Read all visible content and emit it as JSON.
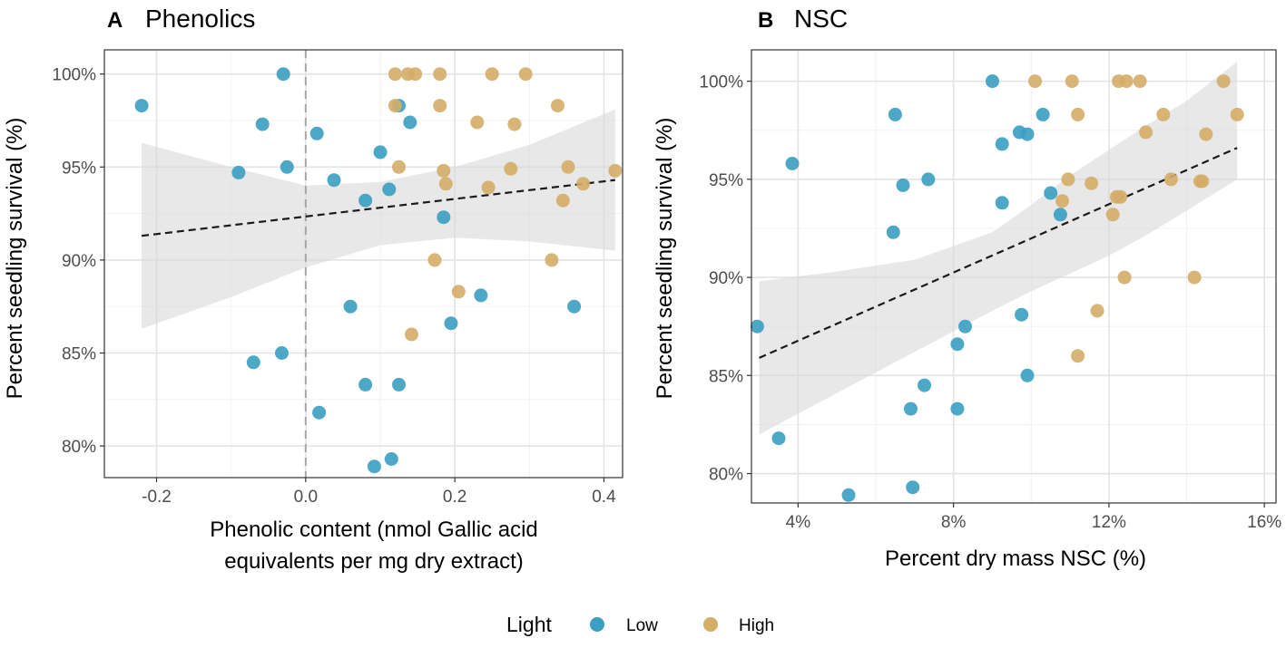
{
  "colors": {
    "low": "#3a9fc1",
    "high": "#d4ad67",
    "band": "#d9d9d9",
    "trend": "#1a1a1a"
  },
  "legend": {
    "title": "Light",
    "items": [
      {
        "key": "low",
        "label": "Low"
      },
      {
        "key": "high",
        "label": "High"
      }
    ]
  },
  "chart_data": [
    {
      "type": "scatter",
      "panel_letter": "A",
      "title": "Phenolics",
      "xlabel_lines": [
        "Phenolic content (nmol Gallic acid",
        "equivalents per mg dry extract)"
      ],
      "ylabel": "Percent seedling survival (%)",
      "xlim": [
        -0.27,
        0.425
      ],
      "ylim": [
        78.3,
        101.3
      ],
      "x_ticks": [
        -0.2,
        0.0,
        0.2,
        0.4
      ],
      "x_tick_labels": [
        "-0.2",
        "0.0",
        "0.2",
        "0.4"
      ],
      "y_ticks": [
        80,
        85,
        90,
        95,
        100
      ],
      "y_tick_labels": [
        "80%",
        "85%",
        "90%",
        "95%",
        "100%"
      ],
      "vline_x": 0.0,
      "trend": {
        "x": [
          -0.22,
          0.415
        ],
        "y": [
          91.3,
          94.3
        ]
      },
      "band": {
        "x": [
          -0.22,
          -0.1,
          0.0,
          0.1,
          0.2,
          0.3,
          0.415
        ],
        "upper": [
          96.3,
          95.0,
          94.0,
          94.2,
          95.0,
          96.2,
          98.1
        ],
        "lower": [
          86.3,
          88.0,
          89.6,
          90.8,
          91.2,
          91.0,
          90.5
        ]
      },
      "series": [
        {
          "name": "Low",
          "x": [
            -0.22,
            -0.03,
            -0.058,
            -0.09,
            -0.025,
            0.015,
            0.125,
            0.14,
            0.1,
            0.038,
            0.112,
            0.08,
            0.185,
            0.06,
            0.235,
            0.195,
            0.36,
            -0.032,
            -0.07,
            0.08,
            0.125,
            0.018,
            0.115,
            0.092
          ],
          "y": [
            98.3,
            100,
            97.3,
            94.7,
            95.0,
            96.8,
            98.3,
            97.4,
            95.8,
            94.3,
            93.8,
            93.2,
            92.3,
            87.5,
            88.1,
            86.6,
            87.5,
            85.0,
            84.5,
            83.3,
            83.3,
            81.8,
            79.3,
            78.9
          ]
        },
        {
          "name": "High",
          "x": [
            0.12,
            0.137,
            0.147,
            0.18,
            0.25,
            0.295,
            0.12,
            0.18,
            0.338,
            0.23,
            0.28,
            0.125,
            0.185,
            0.188,
            0.275,
            0.352,
            0.245,
            0.345,
            0.372,
            0.415,
            0.173,
            0.205,
            0.33,
            0.142
          ],
          "y": [
            100,
            100,
            100,
            100,
            100,
            100,
            98.3,
            98.3,
            98.3,
            97.4,
            97.3,
            95.0,
            94.8,
            94.1,
            94.9,
            95.0,
            93.9,
            93.2,
            94.1,
            94.8,
            90.0,
            88.3,
            90.0,
            86.0
          ]
        }
      ]
    },
    {
      "type": "scatter",
      "panel_letter": "B",
      "title": "NSC",
      "xlabel_lines": [
        "Percent dry mass NSC (%)"
      ],
      "ylabel": "Percent seedling survival (%)",
      "xlim": [
        2.8,
        16.3
      ],
      "ylim": [
        78.5,
        101.6
      ],
      "x_ticks": [
        4,
        8,
        12,
        16
      ],
      "x_tick_labels": [
        "4%",
        "8%",
        "12%",
        "16%"
      ],
      "y_ticks": [
        80,
        85,
        90,
        95,
        100
      ],
      "y_tick_labels": [
        "80%",
        "85%",
        "90%",
        "95%",
        "100%"
      ],
      "vline_x": null,
      "trend": {
        "x": [
          3.0,
          15.3
        ],
        "y": [
          85.9,
          96.6
        ]
      },
      "band": {
        "x": [
          3.0,
          5.0,
          7.0,
          9.0,
          10.0,
          11.0,
          12.0,
          13.0,
          14.0,
          15.3
        ],
        "upper": [
          89.8,
          90.3,
          90.9,
          92.3,
          93.7,
          95.2,
          96.5,
          97.8,
          99.0,
          101.0
        ],
        "lower": [
          82.0,
          84.1,
          86.2,
          88.3,
          89.3,
          90.2,
          91.1,
          92.2,
          93.4,
          95.0
        ]
      },
      "series": [
        {
          "name": "Low",
          "x": [
            9.0,
            6.5,
            10.3,
            9.7,
            9.9,
            9.25,
            3.85,
            6.7,
            7.35,
            10.5,
            10.75,
            9.25,
            6.45,
            2.95,
            9.75,
            8.3,
            8.1,
            9.9,
            7.25,
            6.9,
            8.1,
            3.5,
            5.3,
            6.95
          ],
          "y": [
            100,
            98.3,
            98.3,
            97.4,
            97.3,
            96.8,
            95.8,
            94.7,
            95.0,
            94.3,
            93.2,
            93.8,
            92.3,
            87.5,
            88.1,
            87.5,
            86.6,
            85.0,
            84.5,
            83.3,
            83.3,
            81.8,
            78.9,
            79.3
          ]
        },
        {
          "name": "High",
          "x": [
            10.1,
            11.05,
            12.25,
            12.45,
            12.8,
            14.95,
            11.2,
            13.4,
            15.3,
            12.95,
            14.5,
            10.95,
            11.55,
            13.6,
            14.35,
            14.4,
            10.8,
            12.2,
            12.3,
            12.1,
            12.4,
            14.2,
            11.7,
            11.2
          ],
          "y": [
            100,
            100,
            100,
            100,
            100,
            100,
            98.3,
            98.3,
            98.3,
            97.4,
            97.3,
            95.0,
            94.8,
            95.0,
            94.9,
            94.9,
            93.9,
            94.1,
            94.1,
            93.2,
            90.0,
            90.0,
            88.3,
            86.0
          ]
        }
      ]
    }
  ]
}
